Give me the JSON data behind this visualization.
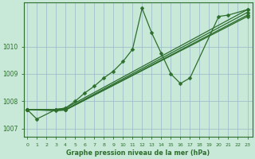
{
  "xlabel": "Graphe pression niveau de la mer (hPa)",
  "background_color": "#c8e8d8",
  "grid_color": "#9ab8c8",
  "line_color": "#2d6e2d",
  "x_ticks": [
    0,
    1,
    2,
    3,
    4,
    5,
    6,
    7,
    8,
    9,
    10,
    11,
    12,
    13,
    14,
    15,
    16,
    17,
    18,
    19,
    20,
    21,
    22,
    23
  ],
  "ylim": [
    1006.7,
    1011.6
  ],
  "xlim": [
    -0.3,
    23.5
  ],
  "yticks": [
    1007,
    1008,
    1009,
    1010
  ],
  "line1_x": [
    0,
    1,
    3,
    4,
    5,
    6,
    7,
    8,
    9,
    10,
    11,
    12,
    13,
    14,
    15,
    16,
    17,
    20,
    21,
    23
  ],
  "line1_y": [
    1007.7,
    1007.35,
    1007.7,
    1007.75,
    1008.0,
    1008.3,
    1008.55,
    1008.85,
    1009.1,
    1009.45,
    1009.9,
    1011.4,
    1010.5,
    1009.75,
    1009.0,
    1008.65,
    1008.85,
    1011.1,
    1011.15,
    1011.35
  ],
  "line2_x": [
    0,
    3,
    4,
    23
  ],
  "line2_y": [
    1007.7,
    1007.7,
    1007.75,
    1011.35
  ],
  "line3_x": [
    0,
    3,
    4,
    23
  ],
  "line3_y": [
    1007.7,
    1007.7,
    1007.7,
    1011.25
  ],
  "line4_x": [
    0,
    3,
    4,
    23
  ],
  "line4_y": [
    1007.7,
    1007.65,
    1007.68,
    1011.15
  ],
  "line5_x": [
    0,
    4,
    23
  ],
  "line5_y": [
    1007.7,
    1007.68,
    1011.1
  ],
  "marker_size": 2.5
}
